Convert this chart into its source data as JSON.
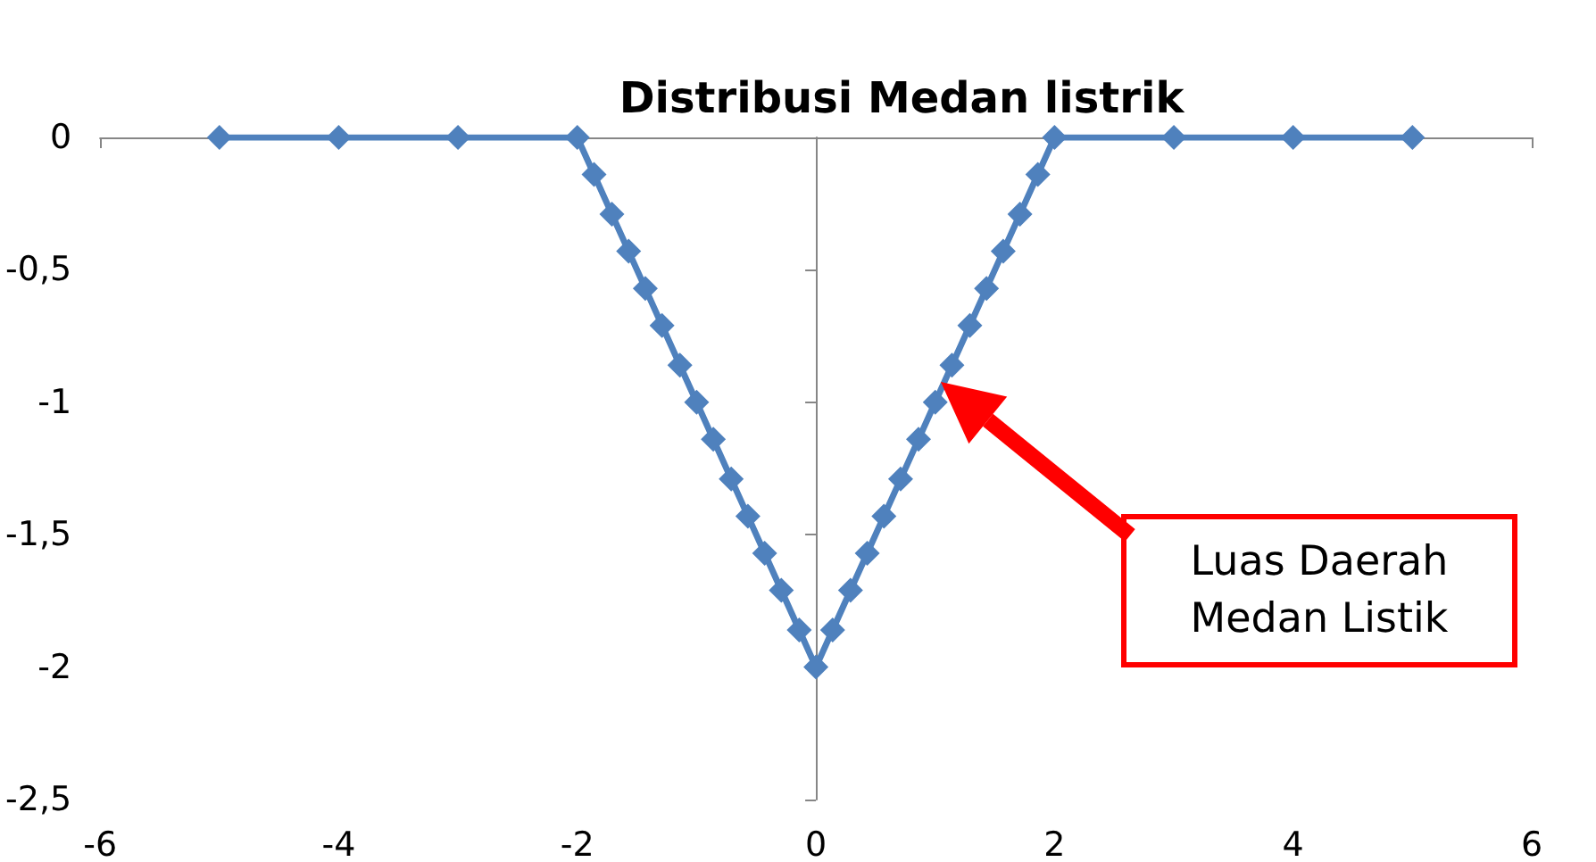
{
  "chart_data": {
    "type": "line",
    "title": "Distribusi Medan listrik",
    "x": [
      -5,
      -4,
      -3,
      -2,
      -1.86,
      -1.71,
      -1.57,
      -1.43,
      -1.29,
      -1.14,
      -1,
      -0.86,
      -0.71,
      -0.57,
      -0.43,
      -0.29,
      -0.14,
      0,
      0.14,
      0.29,
      0.43,
      0.57,
      0.71,
      0.86,
      1,
      1.14,
      1.29,
      1.43,
      1.57,
      1.71,
      1.86,
      2,
      3,
      4,
      5
    ],
    "series": [
      {
        "color": "#4f81bd",
        "values": [
          0,
          0,
          0,
          0,
          -0.14,
          -0.29,
          -0.43,
          -0.57,
          -0.71,
          -0.86,
          -1,
          -1.14,
          -1.29,
          -1.43,
          -1.57,
          -1.71,
          -1.86,
          -2,
          -1.86,
          -1.71,
          -1.57,
          -1.43,
          -1.29,
          -1.14,
          -1,
          -0.86,
          -0.71,
          -0.57,
          -0.43,
          -0.29,
          -0.14,
          0,
          0,
          0,
          0
        ]
      }
    ],
    "xlim": [
      -6,
      6
    ],
    "xticks": [
      -6,
      -4,
      -2,
      0,
      2,
      4,
      6
    ],
    "ylim": [
      -2.5,
      0
    ],
    "yticks": [
      {
        "value": -2.5,
        "label": "-2,5"
      },
      {
        "value": -2,
        "label": "-2"
      },
      {
        "value": -1.5,
        "label": "-1,5"
      },
      {
        "value": -1,
        "label": "-1"
      },
      {
        "value": -0.5,
        "label": "-0,5"
      },
      {
        "value": 0,
        "label": "0"
      }
    ],
    "marker": "diamond",
    "line_style": "solid",
    "annotations": [
      "Luas Daerah Medan Listik"
    ]
  }
}
